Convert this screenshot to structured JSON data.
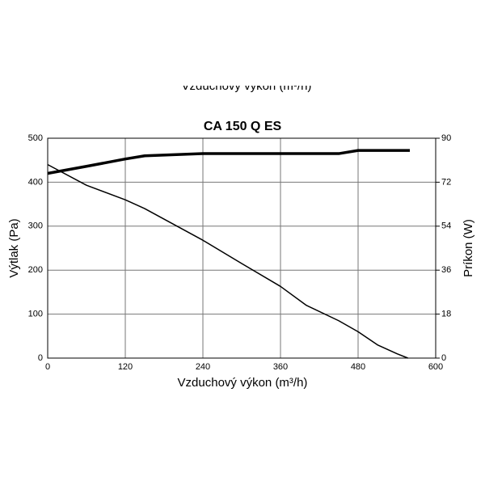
{
  "chart_data": {
    "type": "line",
    "title": "CA 150 Q ES",
    "xlabel": "Vzduchový výkon (m³/h)",
    "ylabel": "Výtlak (Pa)",
    "y2label": "Príkon (W)",
    "xlim": [
      0,
      600
    ],
    "xticks": [
      0,
      120,
      240,
      360,
      480,
      600
    ],
    "ylim": [
      0,
      500
    ],
    "yticks": [
      0,
      100,
      200,
      300,
      400,
      500
    ],
    "y2lim": [
      0,
      90
    ],
    "y2ticks": [
      0,
      18,
      36,
      54,
      72,
      90
    ],
    "grid": true,
    "series": [
      {
        "color": "#000000",
        "width": 1.5,
        "x": [
          0,
          60,
          120,
          150,
          240,
          300,
          360,
          400,
          450,
          480,
          510,
          540,
          557
        ],
        "values": [
          440,
          393,
          360,
          340,
          268,
          215,
          163,
          120,
          85,
          60,
          30,
          10,
          0
        ]
      },
      {
        "color": "#000000",
        "width": 3.5,
        "axis": "y2",
        "x": [
          0,
          60,
          120,
          150,
          240,
          360,
          450,
          480,
          560
        ],
        "values": [
          75.6,
          78.5,
          81.5,
          82.8,
          83.7,
          83.7,
          83.7,
          85,
          85
        ]
      }
    ]
  }
}
